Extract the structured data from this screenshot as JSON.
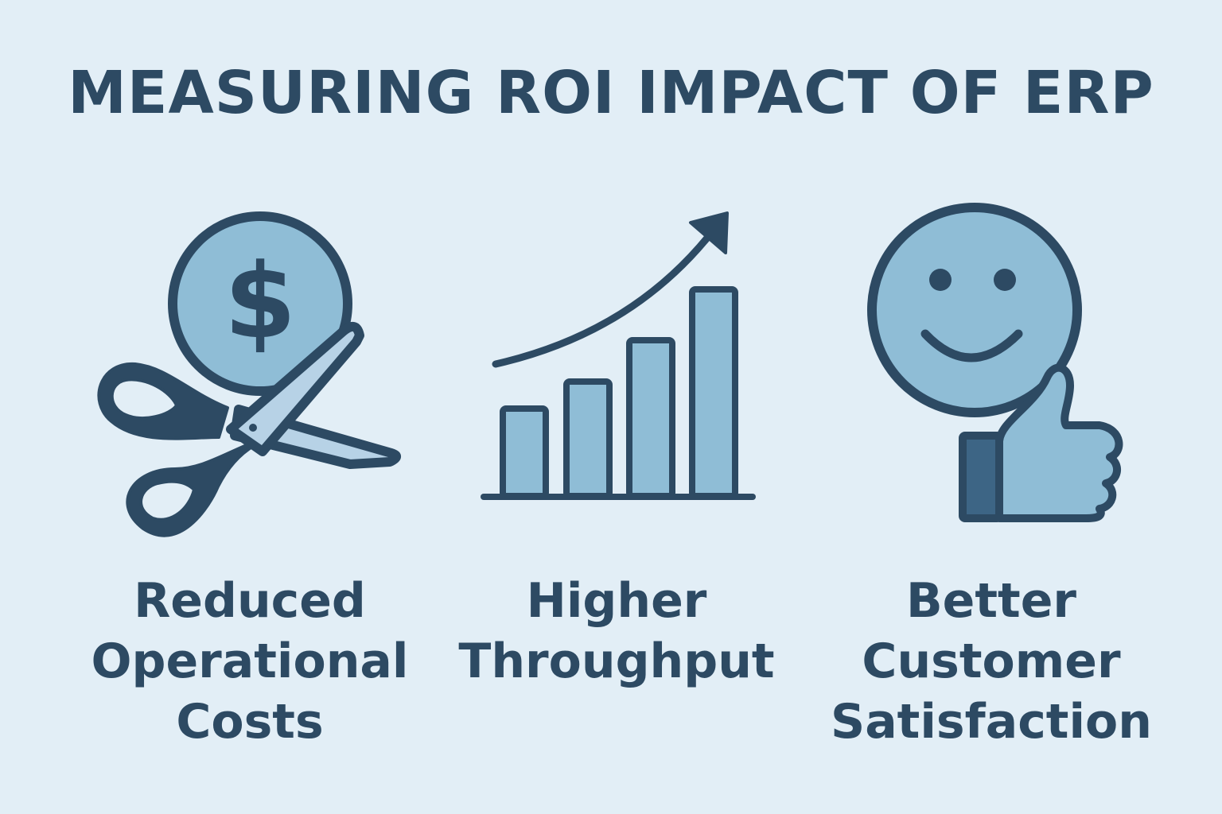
{
  "title": "MEASURING ROI IMPACT OF ERP",
  "colors": {
    "background": "#e2eef6",
    "ink": "#2d4a63",
    "fill": "#8fbdd6",
    "cuff": "#3d6585"
  },
  "items": [
    {
      "icon": "scissors-cutting-dollar-coin-icon",
      "glyph": "$",
      "lines": [
        "Reduced",
        "Operational",
        "Costs"
      ]
    },
    {
      "icon": "growth-bar-chart-icon",
      "lines": [
        "Higher",
        "Throughput"
      ]
    },
    {
      "icon": "smiley-thumbs-up-icon",
      "lines": [
        "Better",
        "Customer",
        "Satisfaction"
      ]
    }
  ]
}
